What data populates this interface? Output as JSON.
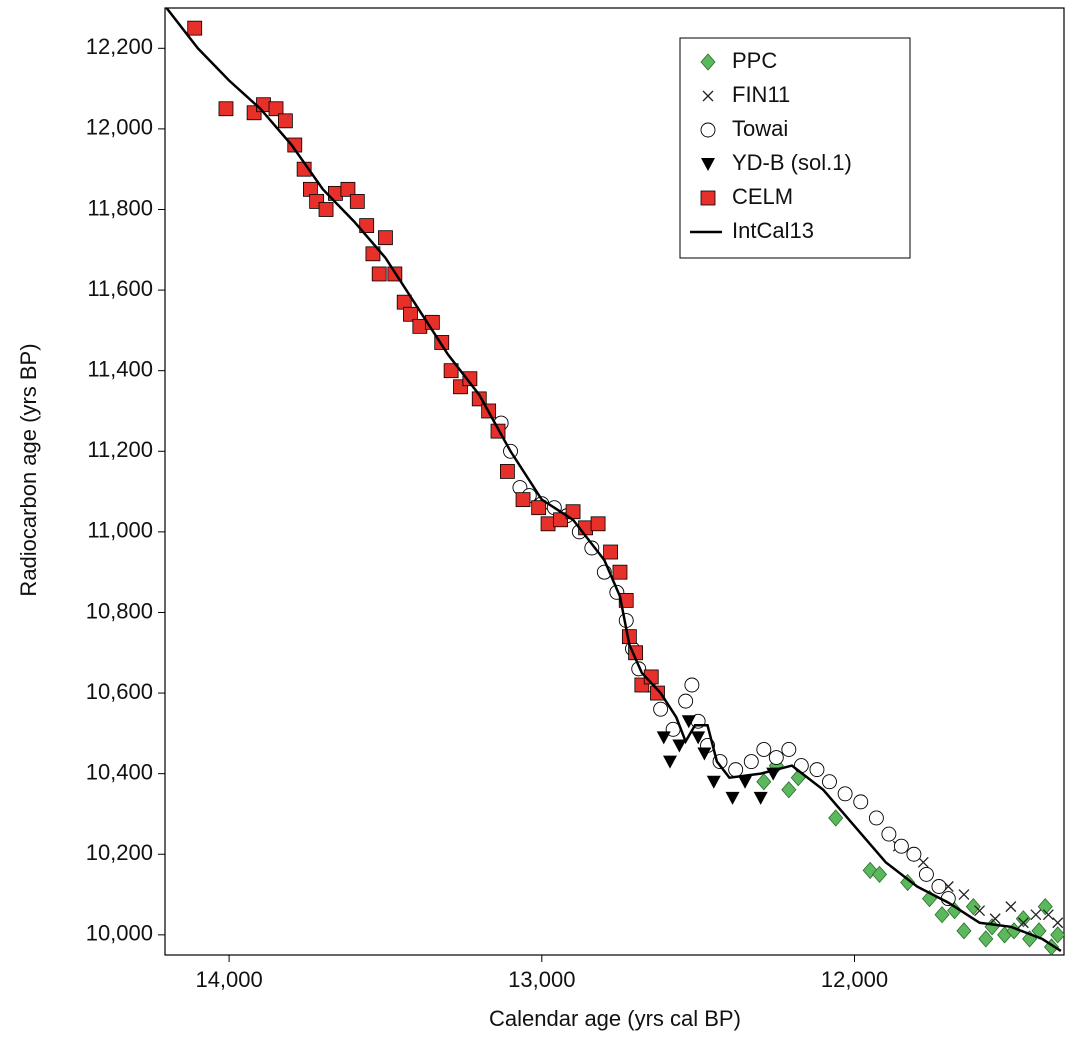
{
  "chart_data": {
    "type": "scatter",
    "xlabel": "Calendar age (yrs cal BP)",
    "ylabel": "Radiocarbon age (yrs BP)",
    "xlim": [
      14205,
      11330
    ],
    "ylim": [
      9950,
      12300
    ],
    "xticks": [
      {
        "value": 14000,
        "label": "14,000"
      },
      {
        "value": 13000,
        "label": "13,000"
      },
      {
        "value": 12000,
        "label": "12,000"
      }
    ],
    "yticks": [
      {
        "value": 10000,
        "label": "10,000"
      },
      {
        "value": 10200,
        "label": "10,200"
      },
      {
        "value": 10400,
        "label": "10,400"
      },
      {
        "value": 10600,
        "label": "10,600"
      },
      {
        "value": 10800,
        "label": "10,800"
      },
      {
        "value": 11000,
        "label": "11,000"
      },
      {
        "value": 11200,
        "label": "11,200"
      },
      {
        "value": 11400,
        "label": "11,400"
      },
      {
        "value": 11600,
        "label": "11,600"
      },
      {
        "value": 11800,
        "label": "11,800"
      },
      {
        "value": 12000,
        "label": "12,000"
      },
      {
        "value": 12200,
        "label": "12,200"
      }
    ],
    "legend": "upper right",
    "series": [
      {
        "name": "PPC",
        "marker": "diamond",
        "color": "#5cb85c",
        "x": [
          12290,
          12250,
          12210,
          12180,
          12060,
          11950,
          11920,
          11830,
          11760,
          11720,
          11680,
          11650,
          11620,
          11580,
          11560,
          11520,
          11490,
          11460,
          11440,
          11410,
          11390,
          11370,
          11350
        ],
        "values": [
          10380,
          10420,
          10360,
          10390,
          10290,
          10160,
          10150,
          10130,
          10090,
          10050,
          10060,
          10010,
          10070,
          9990,
          10020,
          10000,
          10010,
          10040,
          9990,
          10010,
          10070,
          9970,
          10000
        ]
      },
      {
        "name": "FIN11",
        "marker": "cross",
        "color": "#222222",
        "x": [
          11860,
          11780,
          11700,
          11650,
          11600,
          11550,
          11500,
          11460,
          11420,
          11380,
          11350
        ],
        "values": [
          10220,
          10180,
          10120,
          10100,
          10060,
          10040,
          10070,
          10030,
          10050,
          10050,
          10030
        ]
      },
      {
        "name": "Towai",
        "marker": "circle",
        "color": "#ffffff",
        "x": [
          13130,
          13100,
          13070,
          13040,
          13000,
          12960,
          12920,
          12880,
          12840,
          12800,
          12760,
          12730,
          12710,
          12690,
          12660,
          12620,
          12580,
          12540,
          12520,
          12500,
          12470,
          12430,
          12380,
          12330,
          12290,
          12250,
          12210,
          12170,
          12120,
          12080,
          12030,
          11980,
          11930,
          11890,
          11850,
          11810,
          11770,
          11730,
          11700
        ],
        "values": [
          11270,
          11200,
          11110,
          11090,
          11070,
          11060,
          11040,
          11000,
          10960,
          10900,
          10850,
          10780,
          10710,
          10660,
          10620,
          10560,
          10510,
          10580,
          10620,
          10530,
          10470,
          10430,
          10410,
          10430,
          10460,
          10440,
          10460,
          10420,
          10410,
          10380,
          10350,
          10330,
          10290,
          10250,
          10220,
          10200,
          10150,
          10120,
          10090
        ]
      },
      {
        "name": "YD-B (sol.1)",
        "marker": "triangle-down",
        "color": "#000000",
        "x": [
          12610,
          12590,
          12560,
          12530,
          12500,
          12480,
          12450,
          12390,
          12350,
          12300,
          12260
        ],
        "values": [
          10490,
          10430,
          10470,
          10530,
          10490,
          10450,
          10380,
          10340,
          10380,
          10340,
          10400
        ]
      },
      {
        "name": "CELM",
        "marker": "square",
        "color": "#e8302a",
        "x": [
          14110,
          14010,
          13920,
          13890,
          13850,
          13820,
          13790,
          13760,
          13740,
          13720,
          13690,
          13660,
          13620,
          13590,
          13560,
          13540,
          13520,
          13500,
          13470,
          13440,
          13420,
          13390,
          13350,
          13320,
          13290,
          13260,
          13230,
          13200,
          13170,
          13140,
          13110,
          13060,
          13010,
          12980,
          12940,
          12900,
          12860,
          12820,
          12780,
          12750,
          12730,
          12720,
          12700,
          12680,
          12650,
          12630
        ],
        "values": [
          12250,
          12050,
          12040,
          12060,
          12050,
          12020,
          11960,
          11900,
          11850,
          11820,
          11800,
          11840,
          11850,
          11820,
          11760,
          11690,
          11640,
          11730,
          11640,
          11570,
          11540,
          11510,
          11520,
          11470,
          11400,
          11360,
          11380,
          11330,
          11300,
          11250,
          11150,
          11080,
          11060,
          11020,
          11030,
          11050,
          11010,
          11020,
          10950,
          10900,
          10830,
          10740,
          10700,
          10620,
          10640,
          10600
        ]
      },
      {
        "name": "IntCal13",
        "marker": "line",
        "color": "#000000",
        "x": [
          14200,
          14100,
          14000,
          13900,
          13800,
          13700,
          13600,
          13500,
          13400,
          13300,
          13200,
          13100,
          13000,
          12900,
          12800,
          12750,
          12720,
          12680,
          12620,
          12570,
          12540,
          12510,
          12470,
          12440,
          12400,
          12300,
          12200,
          12100,
          12000,
          11900,
          11800,
          11700,
          11600,
          11500,
          11400,
          11340
        ],
        "values": [
          12300,
          12200,
          12120,
          12050,
          11960,
          11850,
          11770,
          11680,
          11560,
          11440,
          11340,
          11200,
          11080,
          11030,
          10930,
          10840,
          10720,
          10650,
          10600,
          10540,
          10480,
          10520,
          10520,
          10430,
          10390,
          10400,
          10420,
          10360,
          10270,
          10180,
          10120,
          10080,
          10030,
          10020,
          9990,
          9960
        ]
      }
    ]
  }
}
